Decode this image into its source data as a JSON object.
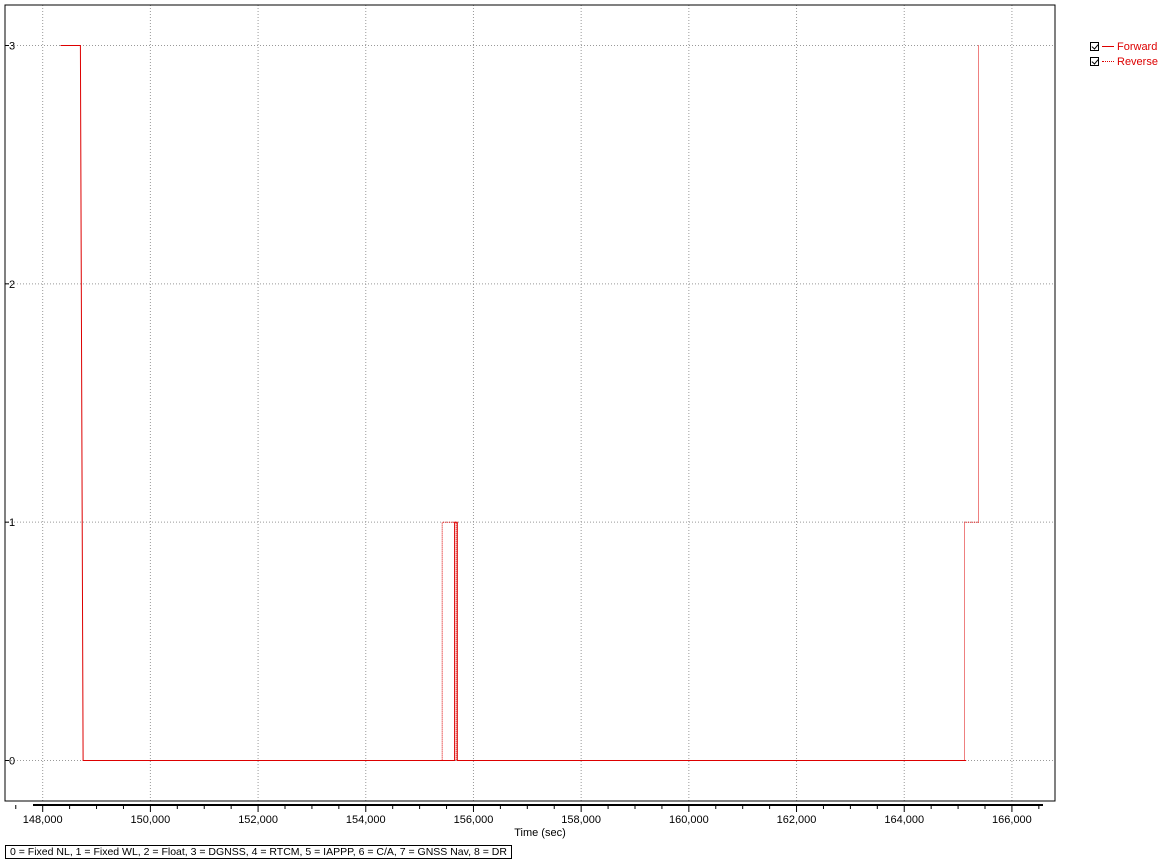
{
  "chart_data": {
    "type": "line",
    "title": "",
    "xlabel": "Time (sec)",
    "ylabel": "",
    "xlim": [
      147300,
      166800
    ],
    "ylim": [
      -0.17,
      3.17
    ],
    "x_ticks": [
      148000,
      150000,
      152000,
      154000,
      156000,
      158000,
      160000,
      162000,
      164000,
      166000
    ],
    "x_tick_labels": [
      "148,000",
      "150,000",
      "152,000",
      "154,000",
      "156,000",
      "158,000",
      "160,000",
      "162,000",
      "164,000",
      "166,000"
    ],
    "y_ticks": [
      0,
      1,
      2,
      3
    ],
    "y_tick_labels": [
      "0",
      "1",
      "2",
      "3"
    ],
    "grid": true,
    "legend_placement": "right, outside plot, top",
    "series": [
      {
        "name": "Forward",
        "color": "#dd0000",
        "line_style": "solid",
        "points": [
          [
            148330,
            3
          ],
          [
            148700,
            3
          ],
          [
            148750,
            0
          ],
          [
            155650,
            0
          ],
          [
            155650,
            1
          ],
          [
            155700,
            1
          ],
          [
            155700,
            0
          ],
          [
            165150,
            0
          ]
        ]
      },
      {
        "name": "Reverse",
        "color": "#dd0000",
        "line_style": "dotted",
        "points": [
          [
            148750,
            0
          ],
          [
            155420,
            0
          ],
          [
            155420,
            1
          ],
          [
            155680,
            1
          ],
          [
            155680,
            0
          ],
          [
            165120,
            0
          ],
          [
            165120,
            1
          ],
          [
            165380,
            1
          ],
          [
            165380,
            3
          ]
        ]
      }
    ]
  },
  "legend": {
    "items": [
      {
        "label": "Forward",
        "line_style": "solid",
        "color": "#dd0000"
      },
      {
        "label": "Reverse",
        "line_style": "dotted",
        "color": "#dd0000"
      }
    ]
  },
  "footnote": "0 = Fixed NL, 1 = Fixed WL, 2 = Float, 3 = DGNSS, 4 = RTCM, 5 = IAPPP, 6 = C/A, 7 = GNSS Nav, 8 = DR"
}
